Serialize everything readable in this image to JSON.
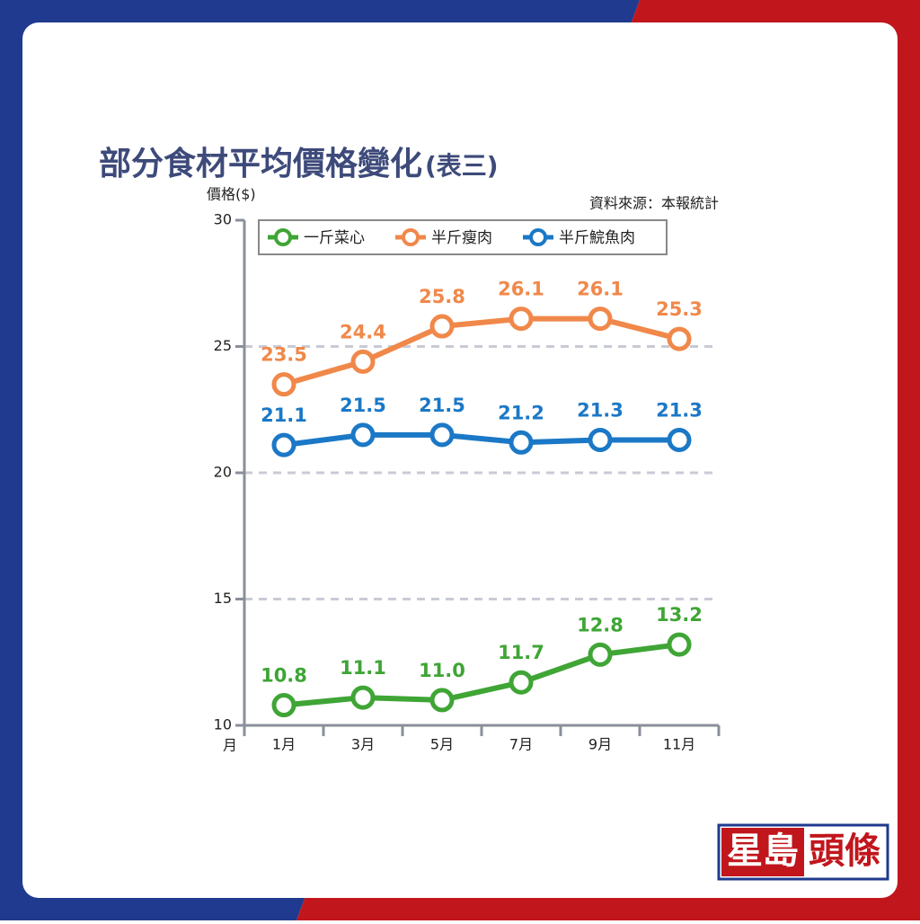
{
  "chart_data": {
    "type": "line",
    "title": "部分食材平均價格變化",
    "subtitle": "(表三)",
    "y_label": "價格($)",
    "x_label": "月",
    "source": "資料來源：本報統計",
    "categories": [
      "1月",
      "3月",
      "5月",
      "7月",
      "9月",
      "11月"
    ],
    "series": [
      {
        "name": "一斤菜心",
        "color": "#3fa535",
        "values": [
          10.8,
          11.1,
          11.0,
          11.7,
          12.8,
          13.2
        ],
        "value_labels": [
          "10.8",
          "11.1",
          "11.0",
          "11.7",
          "12.8",
          "13.2"
        ]
      },
      {
        "name": "半斤瘦肉",
        "color": "#f0884a",
        "values": [
          23.5,
          24.4,
          25.8,
          26.1,
          26.1,
          25.3
        ]
      },
      {
        "name": "半斤鯇魚肉",
        "color": "#1b78c6",
        "values": [
          21.1,
          21.5,
          21.5,
          21.2,
          21.3,
          21.3
        ]
      }
    ],
    "ylim": [
      10,
      30
    ],
    "yticks": [
      10,
      15,
      20,
      25,
      30
    ],
    "grid": true,
    "legend": "top",
    "logo": {
      "left": "星島",
      "right": "頭條"
    }
  }
}
